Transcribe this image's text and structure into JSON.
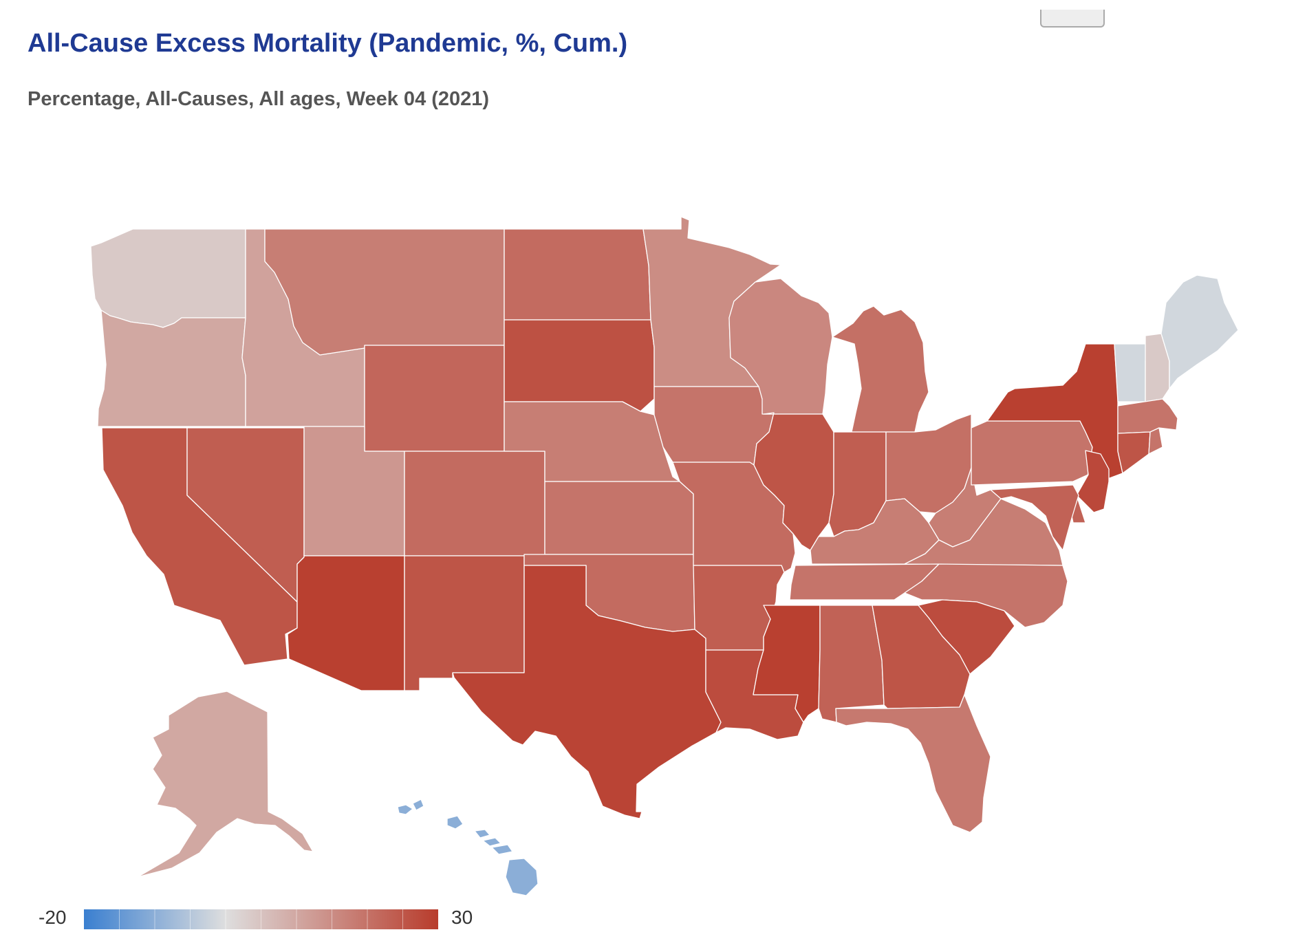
{
  "chart_data": {
    "type": "choropleth",
    "title": "All-Cause Excess Mortality (Pandemic, %, Cum.)",
    "subtitle": "Percentage, All-Causes, All ages, Week 04 (2021)",
    "scale": {
      "min": -20,
      "max": 30,
      "min_label": "-20",
      "max_label": "30"
    },
    "colors": {
      "low": "#3a7fd0",
      "mid": "#dedede",
      "high": "#b83c2c",
      "no_data": "#dedede",
      "border": "#ffffff"
    },
    "states": {
      "WA": 2,
      "OR": 7,
      "CA": 24,
      "NV": 22,
      "ID": 8,
      "UT": 10,
      "AZ": 29,
      "MT": 15,
      "WY": 20,
      "CO": 19,
      "NM": 24,
      "ND": 19,
      "SD": 25,
      "NE": 15,
      "KS": 17,
      "OK": 19,
      "TX": 28,
      "MN": 12,
      "IA": 17,
      "MO": 19,
      "AR": 22,
      "LA": 26,
      "WI": 13,
      "IL": 24,
      "MI": 18,
      "IN": 22,
      "OH": 18,
      "KY": 15,
      "TN": 17,
      "MS": 29,
      "AL": 21,
      "GA": 24,
      "FL": 16,
      "SC": 26,
      "NC": 17,
      "VA": 15,
      "WV": 15,
      "PA": 17,
      "NY": 29,
      "VT": -1,
      "NH": 2,
      "ME": -1,
      "MA": 17,
      "CT": 24,
      "RI": 17,
      "NJ": 27,
      "DE": 21,
      "MD": 21,
      "AK": 7,
      "HI": -9
    }
  }
}
